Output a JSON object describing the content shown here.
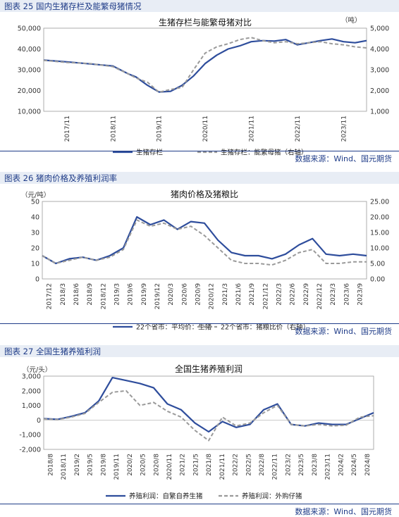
{
  "chart_data": [
    {
      "type": "line",
      "caption": "图表 25 国内生猪存栏及能繁母猪情况",
      "title": "生猪存栏与能繁母猪对比",
      "ylabel_left": "",
      "ylabel_right": "（吨）",
      "ylim_left": [
        10000,
        50000
      ],
      "ylim_right": [
        1000,
        5000
      ],
      "yticks_left": [
        "10,000",
        "20,000",
        "30,000",
        "40,000",
        "50,000"
      ],
      "yticks_right": [
        "1,000",
        "2,000",
        "3,000",
        "4,000",
        "5,000"
      ],
      "categories": [
        "2017/11",
        "2018/11",
        "2019/11",
        "2020/11",
        "2021/11",
        "2022/11",
        "2023/11"
      ],
      "series": [
        {
          "name": "生猪存栏",
          "axis": "left",
          "style": "solid",
          "x": [
            0,
            6,
            12,
            18,
            22,
            24,
            27,
            30,
            33,
            36,
            39,
            42,
            45,
            48,
            51,
            54,
            57,
            60,
            63,
            66,
            69,
            72,
            75,
            78,
            81,
            84
          ],
          "values": [
            34600,
            33800,
            32800,
            31800,
            28000,
            26500,
            22500,
            19300,
            19600,
            22500,
            27000,
            33000,
            37000,
            40000,
            41500,
            43500,
            44000,
            43800,
            44500,
            42000,
            43000,
            44000,
            44800,
            43500,
            43000,
            44000
          ]
        },
        {
          "name": "生猪存栏：能繁母猪（右轴）",
          "axis": "right",
          "style": "dashed",
          "x": [
            0,
            6,
            12,
            18,
            22,
            24,
            27,
            30,
            33,
            36,
            39,
            42,
            45,
            48,
            51,
            54,
            57,
            60,
            63,
            66,
            69,
            72,
            75,
            78,
            81,
            84
          ],
          "values": [
            3450,
            3350,
            3300,
            3150,
            2800,
            2600,
            2400,
            1920,
            2050,
            2150,
            3000,
            3800,
            4100,
            4250,
            4450,
            4550,
            4400,
            4300,
            4350,
            4250,
            4300,
            4350,
            4250,
            4200,
            4100,
            4050
          ]
        }
      ],
      "legend_position": "bottom",
      "source": "数据来源：Wind、国元期货"
    },
    {
      "type": "line",
      "caption": "图表 26 猪肉价格及养殖利润率",
      "title": "猪肉价格及猪粮比",
      "ylabel_left": "（元/吨）",
      "ylim_left": [
        0,
        50
      ],
      "ylim_right": [
        0,
        25
      ],
      "yticks_left": [
        "0",
        "10",
        "20",
        "30",
        "40",
        "50"
      ],
      "yticks_right": [
        "0.00",
        "5.00",
        "10.00",
        "15.00",
        "20.00",
        "25.00"
      ],
      "categories": [
        "2017/12",
        "2018/3",
        "2018/6",
        "2018/9",
        "2018/12",
        "2019/3",
        "2019/6",
        "2019/9",
        "2019/12",
        "2020/3",
        "2020/6",
        "2020/9",
        "2020/12",
        "2021/3",
        "2021/6",
        "2021/9",
        "2021/12",
        "2022/3",
        "2022/6",
        "2022/9",
        "2022/12",
        "2023/3",
        "2023/6",
        "2023/9"
      ],
      "series": [
        {
          "name": "22个省市：平均价：生猪",
          "axis": "left",
          "style": "solid",
          "x": [
            0,
            1,
            2,
            3,
            4,
            5,
            6,
            7,
            8,
            9,
            10,
            11,
            12,
            13,
            14,
            15,
            16,
            17,
            18,
            19,
            20,
            21,
            22,
            23,
            24
          ],
          "values": [
            15,
            10,
            13,
            14,
            12,
            15,
            20,
            40,
            35,
            38,
            32,
            37,
            36,
            25,
            17,
            15,
            15,
            13,
            16,
            22,
            26,
            16,
            15,
            16,
            15
          ]
        },
        {
          "name": "22个省市：猪粮比价（右轴）",
          "axis": "right",
          "style": "dashed",
          "x": [
            0,
            1,
            2,
            3,
            4,
            5,
            6,
            7,
            8,
            9,
            10,
            11,
            12,
            13,
            14,
            15,
            16,
            17,
            18,
            19,
            20,
            21,
            22,
            23,
            24
          ],
          "values": [
            7.5,
            5,
            6,
            7,
            6,
            7,
            9.5,
            19,
            17,
            18,
            16,
            17,
            14,
            10,
            6,
            5,
            5,
            4.5,
            6,
            8.5,
            9.5,
            5,
            5,
            5.5,
            5.5
          ]
        }
      ],
      "legend_position": "bottom",
      "source": "数据来源：Wind、国元期货"
    },
    {
      "type": "line",
      "caption": "图表 27 全国生猪养殖利润",
      "title": "全国生猪养殖利润",
      "ylabel_left": "（元/头）",
      "ylim_left": [
        -2000,
        3000
      ],
      "yticks_left": [
        "-2,000",
        "-1,000",
        "0",
        "1,000",
        "2,000",
        "3,000"
      ],
      "categories": [
        "2018/8",
        "2018/11",
        "2019/2",
        "2019/5",
        "2019/8",
        "2019/11",
        "2020/2",
        "2020/5",
        "2020/8",
        "2020/11",
        "2021/2",
        "2021/5",
        "2021/8",
        "2021/11",
        "2022/2",
        "2022/5",
        "2022/8",
        "2022/11",
        "2023/2",
        "2023/5",
        "2023/8",
        "2023/11",
        "2024/2",
        "2024/5",
        "2024/8"
      ],
      "series": [
        {
          "name": "养殖利润：自繁自养生猪",
          "axis": "left",
          "style": "solid",
          "x": [
            0,
            1,
            2,
            3,
            4,
            5,
            6,
            7,
            8,
            9,
            10,
            11,
            12,
            13,
            14,
            15,
            16,
            17,
            18,
            19,
            20,
            21,
            22,
            23,
            24
          ],
          "values": [
            100,
            50,
            250,
            500,
            1300,
            2900,
            2700,
            2500,
            2200,
            1100,
            700,
            -200,
            -800,
            -100,
            -500,
            -300,
            700,
            1100,
            -300,
            -400,
            -200,
            -300,
            -300,
            100,
            500
          ]
        },
        {
          "name": "养殖利润：外购仔猪",
          "axis": "left",
          "style": "dashed",
          "x": [
            0,
            1,
            2,
            3,
            4,
            5,
            6,
            7,
            8,
            9,
            10,
            11,
            12,
            13,
            14,
            15,
            16,
            17,
            18,
            19,
            20,
            21,
            22,
            23,
            24
          ],
          "values": [
            80,
            30,
            200,
            450,
            1200,
            1900,
            2000,
            1000,
            1200,
            600,
            200,
            -700,
            -1400,
            200,
            -400,
            -200,
            500,
            1000,
            -300,
            -400,
            -300,
            -400,
            -350,
            200,
            300
          ]
        }
      ],
      "legend_position": "bottom",
      "source": "数据来源：Wind、国元期货"
    }
  ],
  "colors": {
    "solid": "#2e4d9c",
    "dashed": "#9a9a9a",
    "caption": "#1f3c88",
    "caption_bg": "#e8edf5"
  }
}
